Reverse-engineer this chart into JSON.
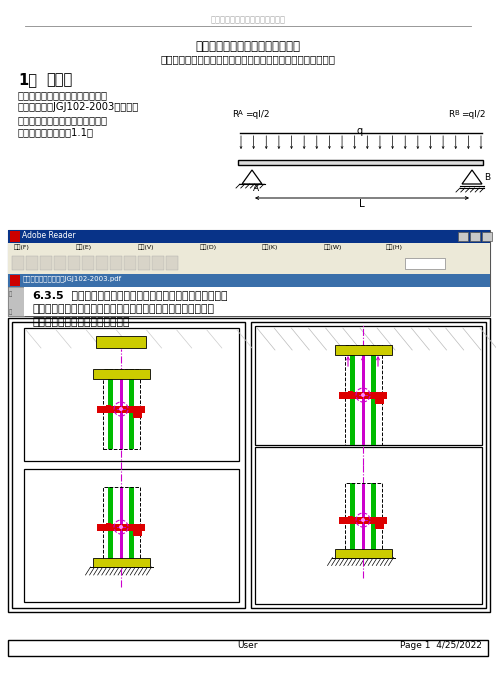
{
  "page_title_header": "幕墙立柱的几种常见力学计算模型",
  "main_title": "幕墙立柱的几种常见力学计算模型",
  "subtitle": "幕墙立柱根据实际支撑条件一般可以按以下几种力学模型设计。",
  "section_num": "1、",
  "section_name": "简支梁",
  "body_lines": [
    "简支梁力学模型是《建筑幕墙工程",
    "技术规范》（JGJ102-2003）中推荐",
    "的立柱计算模型。在均布荷载作用",
    "下，其简化图形如图1.1。"
  ],
  "ra_label": "RA=ql/2",
  "rb_label": "RB=ql/2",
  "q_label": "q",
  "l_label": "L",
  "reader_menu": [
    "文件(F)",
    "编辑(E)",
    "视图(V)",
    "文档(D)",
    "工具(K)",
    "窗口(W)",
    "帮助(H)"
  ],
  "reader_pdf": "幕墙立柱工程技术规范JGJ102-2003.pdf",
  "reader_section": "6.3.5",
  "reader_line1": "在楼层内单独布置立柱时，其上、下端均宜与主体结构",
  "reader_line2": "铰接，宜采用上端悬挂方式；当柱支承点可能产生较大位移时，",
  "reader_line3": "应采用与位移相适应的支承装置。",
  "footer_left": "User",
  "footer_right": "Page 1  4/25/2022",
  "bg_color": "#ffffff"
}
